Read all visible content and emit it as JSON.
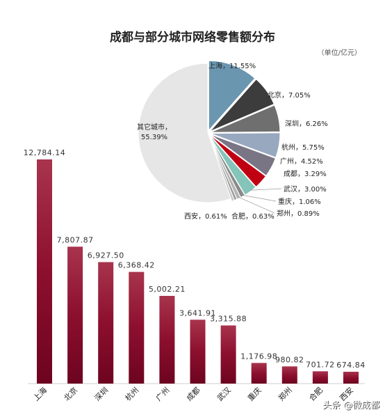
{
  "chart_data": [
    {
      "type": "pie",
      "title": "成都与部分城市网络零售额分布",
      "unit": "（单位/亿元）",
      "slices": [
        {
          "name": "上海",
          "label": "上海，11.55%",
          "value": 11.55,
          "color": "#6a96b0"
        },
        {
          "name": "北京",
          "label": "北京，7.05%",
          "value": 7.05,
          "color": "#3c3c3c"
        },
        {
          "name": "深圳",
          "label": "深圳，6.26%",
          "value": 6.26,
          "color": "#6f6f6f"
        },
        {
          "name": "杭州",
          "label": "杭州，5.75%",
          "value": 5.75,
          "color": "#97a8bf"
        },
        {
          "name": "广州",
          "label": "广州，4.52%",
          "value": 4.52,
          "color": "#7a7584"
        },
        {
          "name": "成都",
          "label": "成都，3.29%",
          "value": 3.29,
          "color": "#c00012"
        },
        {
          "name": "武汉",
          "label": "武汉，3.00%",
          "value": 3.0,
          "color": "#84c4b9"
        },
        {
          "name": "重庆",
          "label": "重庆，1.06%",
          "value": 1.06,
          "color": "#8a8a8a"
        },
        {
          "name": "郑州",
          "label": "郑州，0.89%",
          "value": 0.89,
          "color": "#b3b3b3"
        },
        {
          "name": "合肥",
          "label": "合肥，0.63%",
          "value": 0.63,
          "color": "#9a9a9a"
        },
        {
          "name": "西安",
          "label": "西安，0.61%",
          "value": 0.61,
          "color": "#c9c9c9"
        },
        {
          "name": "其它城市",
          "label": "其它城市，55.39%",
          "value": 55.39,
          "color": "#e6e6e6"
        }
      ]
    },
    {
      "type": "bar",
      "categories": [
        "上海",
        "北京",
        "深圳",
        "杭州",
        "广州",
        "成都",
        "武汉",
        "重庆",
        "郑州",
        "合肥",
        "西安"
      ],
      "values": [
        12784.14,
        7807.87,
        6927.5,
        6368.42,
        5002.21,
        3641.91,
        3315.88,
        1176.98,
        980.82,
        701.72,
        674.84
      ],
      "value_labels": [
        "12,784.14",
        "7,807.87",
        "6,927.50",
        "6,368.42",
        "5,002.21",
        "3,641.91",
        "3,315.88",
        "1,176.98",
        "980.82",
        "701.72",
        "674.84"
      ],
      "color": "#9b1032",
      "ylim": [
        0,
        12784.14
      ]
    }
  ],
  "watermark": "头条 @微成都"
}
